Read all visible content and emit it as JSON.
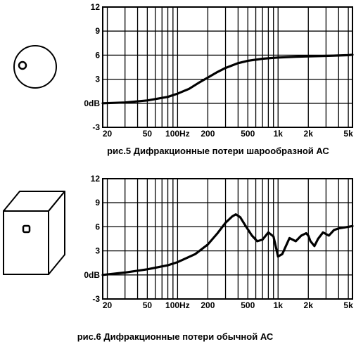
{
  "chart_data": [
    {
      "type": "line",
      "title": "рис.5 Дифракционные потери шарообразной АС",
      "x_scale": "log",
      "xlim": [
        18,
        5500
      ],
      "ylim": [
        -3,
        12
      ],
      "grid": true,
      "x_tick_labels": [
        {
          "x": 20,
          "label": "20"
        },
        {
          "x": 50,
          "label": "50"
        },
        {
          "x": 100,
          "label": "100Hz"
        },
        {
          "x": 200,
          "label": "200"
        },
        {
          "x": 500,
          "label": "500"
        },
        {
          "x": 1000,
          "label": "1k"
        },
        {
          "x": 2000,
          "label": "2k"
        },
        {
          "x": 5000,
          "label": "5k"
        }
      ],
      "y_tick_labels": [
        {
          "y": 12,
          "label": "12"
        },
        {
          "y": 9,
          "label": "9"
        },
        {
          "y": 6,
          "label": "6"
        },
        {
          "y": 3,
          "label": "3"
        },
        {
          "y": 0,
          "label": "0dB"
        },
        {
          "y": -3,
          "label": "-3"
        }
      ],
      "series": [
        {
          "x": [
            18,
            30,
            50,
            80,
            100,
            130,
            160,
            200,
            250,
            300,
            400,
            500,
            700,
            1000,
            1500,
            2000,
            3000,
            5000,
            5500
          ],
          "y": [
            0.0,
            0.1,
            0.35,
            0.8,
            1.2,
            1.8,
            2.5,
            3.2,
            3.9,
            4.4,
            5.0,
            5.3,
            5.55,
            5.7,
            5.8,
            5.85,
            5.9,
            6.0,
            6.05
          ]
        }
      ]
    },
    {
      "type": "line",
      "title": "рис.6 Дифракционные потери обычной АС",
      "x_scale": "log",
      "xlim": [
        18,
        5500
      ],
      "ylim": [
        -3,
        12
      ],
      "grid": true,
      "x_tick_labels": [
        {
          "x": 20,
          "label": "20"
        },
        {
          "x": 50,
          "label": "50"
        },
        {
          "x": 100,
          "label": "100Hz"
        },
        {
          "x": 200,
          "label": "200"
        },
        {
          "x": 500,
          "label": "500"
        },
        {
          "x": 1000,
          "label": "1k"
        },
        {
          "x": 2000,
          "label": "2k"
        },
        {
          "x": 5000,
          "label": "5k"
        }
      ],
      "y_tick_labels": [
        {
          "y": 12,
          "label": "12"
        },
        {
          "y": 9,
          "label": "9"
        },
        {
          "y": 6,
          "label": "6"
        },
        {
          "y": 3,
          "label": "3"
        },
        {
          "y": 0,
          "label": "0dB"
        },
        {
          "y": -3,
          "label": "-3"
        }
      ],
      "series": [
        {
          "x": [
            18,
            30,
            50,
            80,
            100,
            150,
            200,
            250,
            300,
            350,
            380,
            420,
            470,
            550,
            620,
            700,
            800,
            900,
            1000,
            1100,
            1300,
            1500,
            1700,
            1900,
            2000,
            2100,
            2300,
            2500,
            2800,
            3200,
            3600,
            4000,
            5000,
            5500
          ],
          "y": [
            0.0,
            0.3,
            0.7,
            1.2,
            1.6,
            2.6,
            3.8,
            5.2,
            6.5,
            7.3,
            7.55,
            7.2,
            6.2,
            4.9,
            4.2,
            4.4,
            5.3,
            4.8,
            2.3,
            2.6,
            4.6,
            4.2,
            4.9,
            5.2,
            4.9,
            4.2,
            3.6,
            4.5,
            5.3,
            4.9,
            5.6,
            5.8,
            6.0,
            6.1
          ]
        }
      ]
    }
  ],
  "captions": {
    "fig5": "рис.5 Дифракционные потери шарообразной АС",
    "fig6": "рис.6 Дифракционные потери обычной АС"
  }
}
